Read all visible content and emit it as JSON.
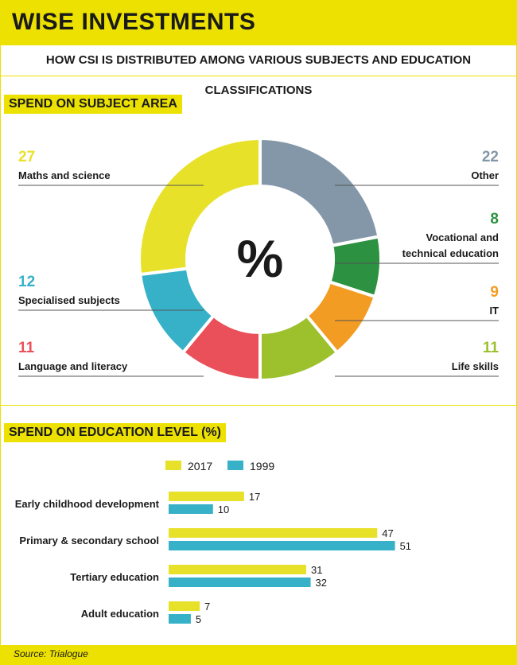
{
  "header": {
    "title": "WISE INVESTMENTS",
    "subtitle": "HOW CSI IS DISTRIBUTED AMONG VARIOUS SUBJECTS AND EDUCATION CLASSIFICATIONS"
  },
  "colors": {
    "accent_yellow": "#ece100",
    "yellow": "#e8e12a",
    "slate": "#8497a8",
    "green": "#2c9140",
    "orange": "#f39c23",
    "lime": "#9cc12d",
    "red": "#e9505a",
    "teal": "#36b1c8"
  },
  "chart_data": [
    {
      "type": "pie",
      "title": "SPEND ON SUBJECT AREA",
      "center_label": "%",
      "slices": [
        {
          "label": "Other",
          "value": 22,
          "color": "#8497a8"
        },
        {
          "label": "Vocational and technical education",
          "value": 8,
          "color": "#2c9140"
        },
        {
          "label": "IT",
          "value": 9,
          "color": "#f39c23"
        },
        {
          "label": "Life skills",
          "value": 11,
          "color": "#9cc12d"
        },
        {
          "label": "Language and literacy",
          "value": 11,
          "color": "#e9505a"
        },
        {
          "label": "Specialised subjects",
          "value": 12,
          "color": "#36b1c8"
        },
        {
          "label": "Maths and science",
          "value": 27,
          "color": "#e8e12a"
        }
      ]
    },
    {
      "type": "bar",
      "orientation": "horizontal",
      "title": "SPEND ON EDUCATION LEVEL (%)",
      "categories": [
        "Early childhood development",
        "Primary & secondary school",
        "Tertiary education",
        "Adult education"
      ],
      "series": [
        {
          "name": "2017",
          "values": [
            17,
            47,
            31,
            7
          ],
          "color": "#e8e12a"
        },
        {
          "name": "1999",
          "values": [
            10,
            51,
            32,
            5
          ],
          "color": "#36b1c8"
        }
      ],
      "legend": "top-center"
    }
  ],
  "footer": {
    "source": "Source: Trialogue"
  }
}
